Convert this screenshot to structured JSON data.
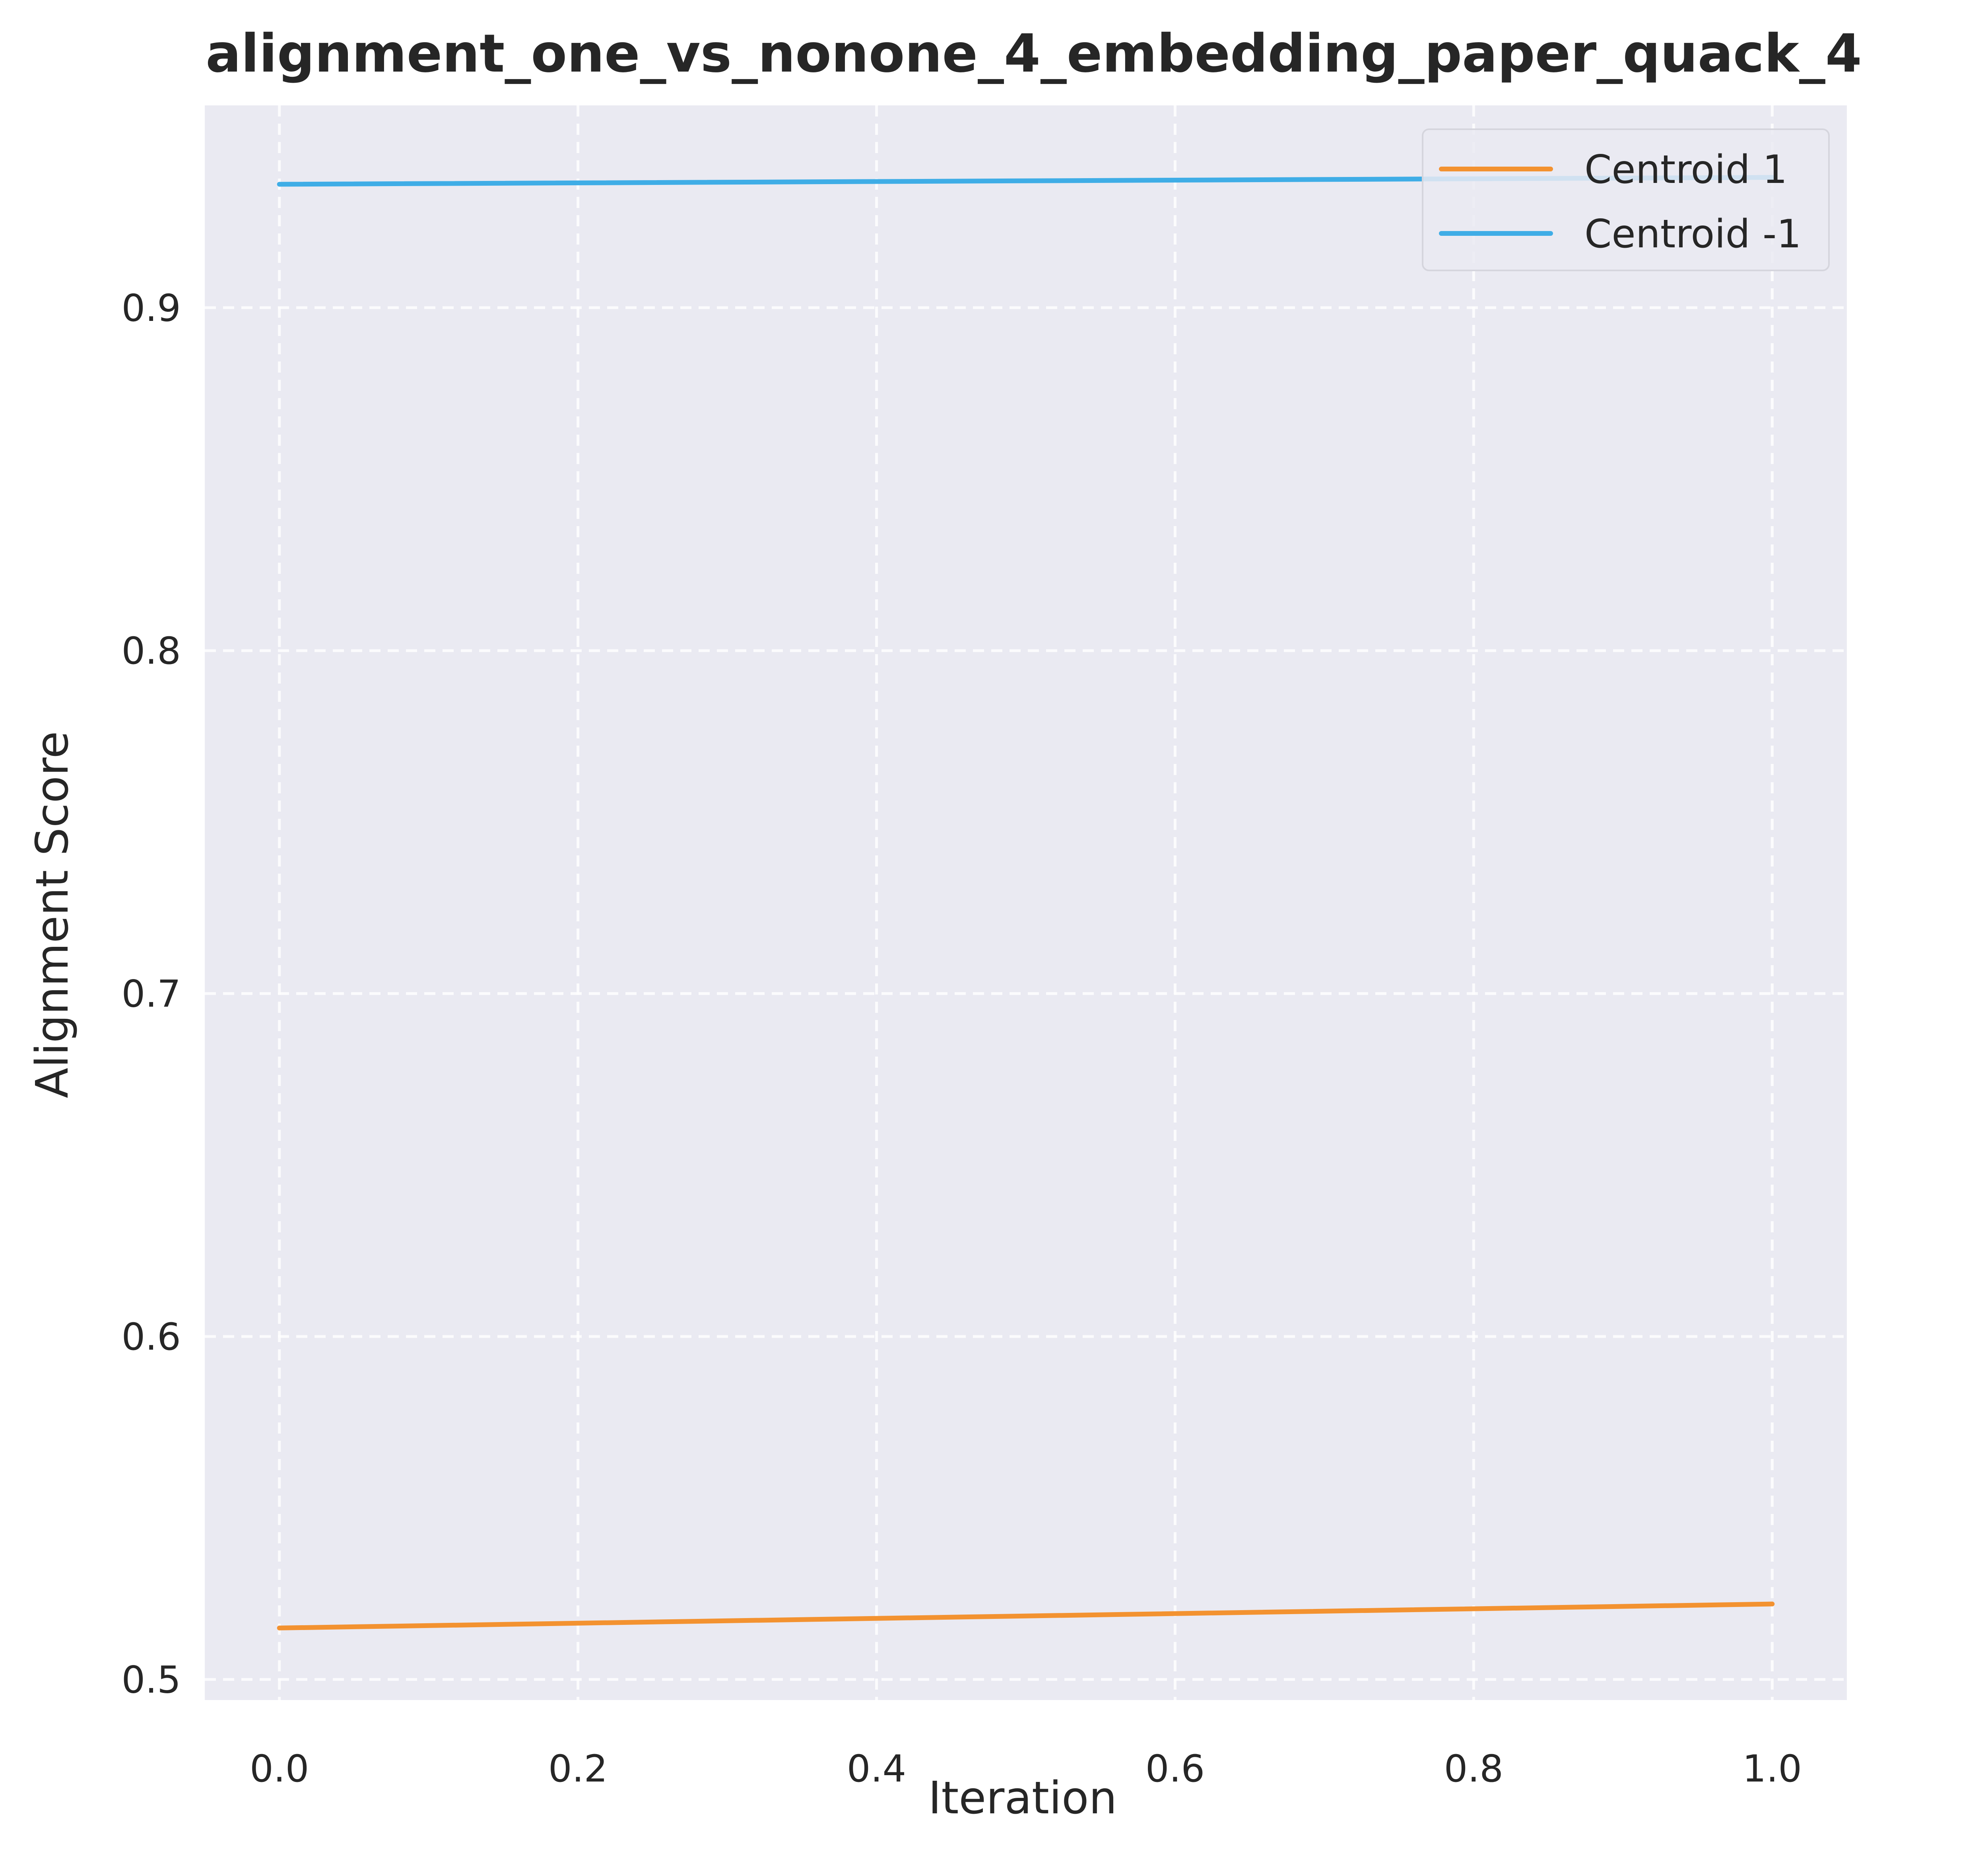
{
  "chart_data": {
    "type": "line",
    "title": "alignment_one_vs_nonone_4_embedding_paper_quack_4",
    "xlabel": "Iteration",
    "ylabel": "Alignment Score",
    "xlim": [
      -0.05,
      1.05
    ],
    "ylim": [
      0.494,
      0.959
    ],
    "x_ticks": [
      0.0,
      0.2,
      0.4,
      0.6,
      0.8,
      1.0
    ],
    "x_tick_labels": [
      "0.0",
      "0.2",
      "0.4",
      "0.6",
      "0.8",
      "1.0"
    ],
    "y_ticks": [
      0.5,
      0.6,
      0.7,
      0.8,
      0.9
    ],
    "y_tick_labels": [
      "0.5",
      "0.6",
      "0.7",
      "0.8",
      "0.9"
    ],
    "grid": true,
    "legend_position": "top-right",
    "background_color": "#eaeaf2",
    "series": [
      {
        "name": "Centroid 1",
        "x": [
          0.0,
          1.0
        ],
        "values": [
          0.515,
          0.522
        ],
        "color": "#f39230"
      },
      {
        "name": "Centroid -1",
        "x": [
          0.0,
          1.0
        ],
        "values": [
          0.936,
          0.938
        ],
        "color": "#3fade6"
      }
    ]
  }
}
